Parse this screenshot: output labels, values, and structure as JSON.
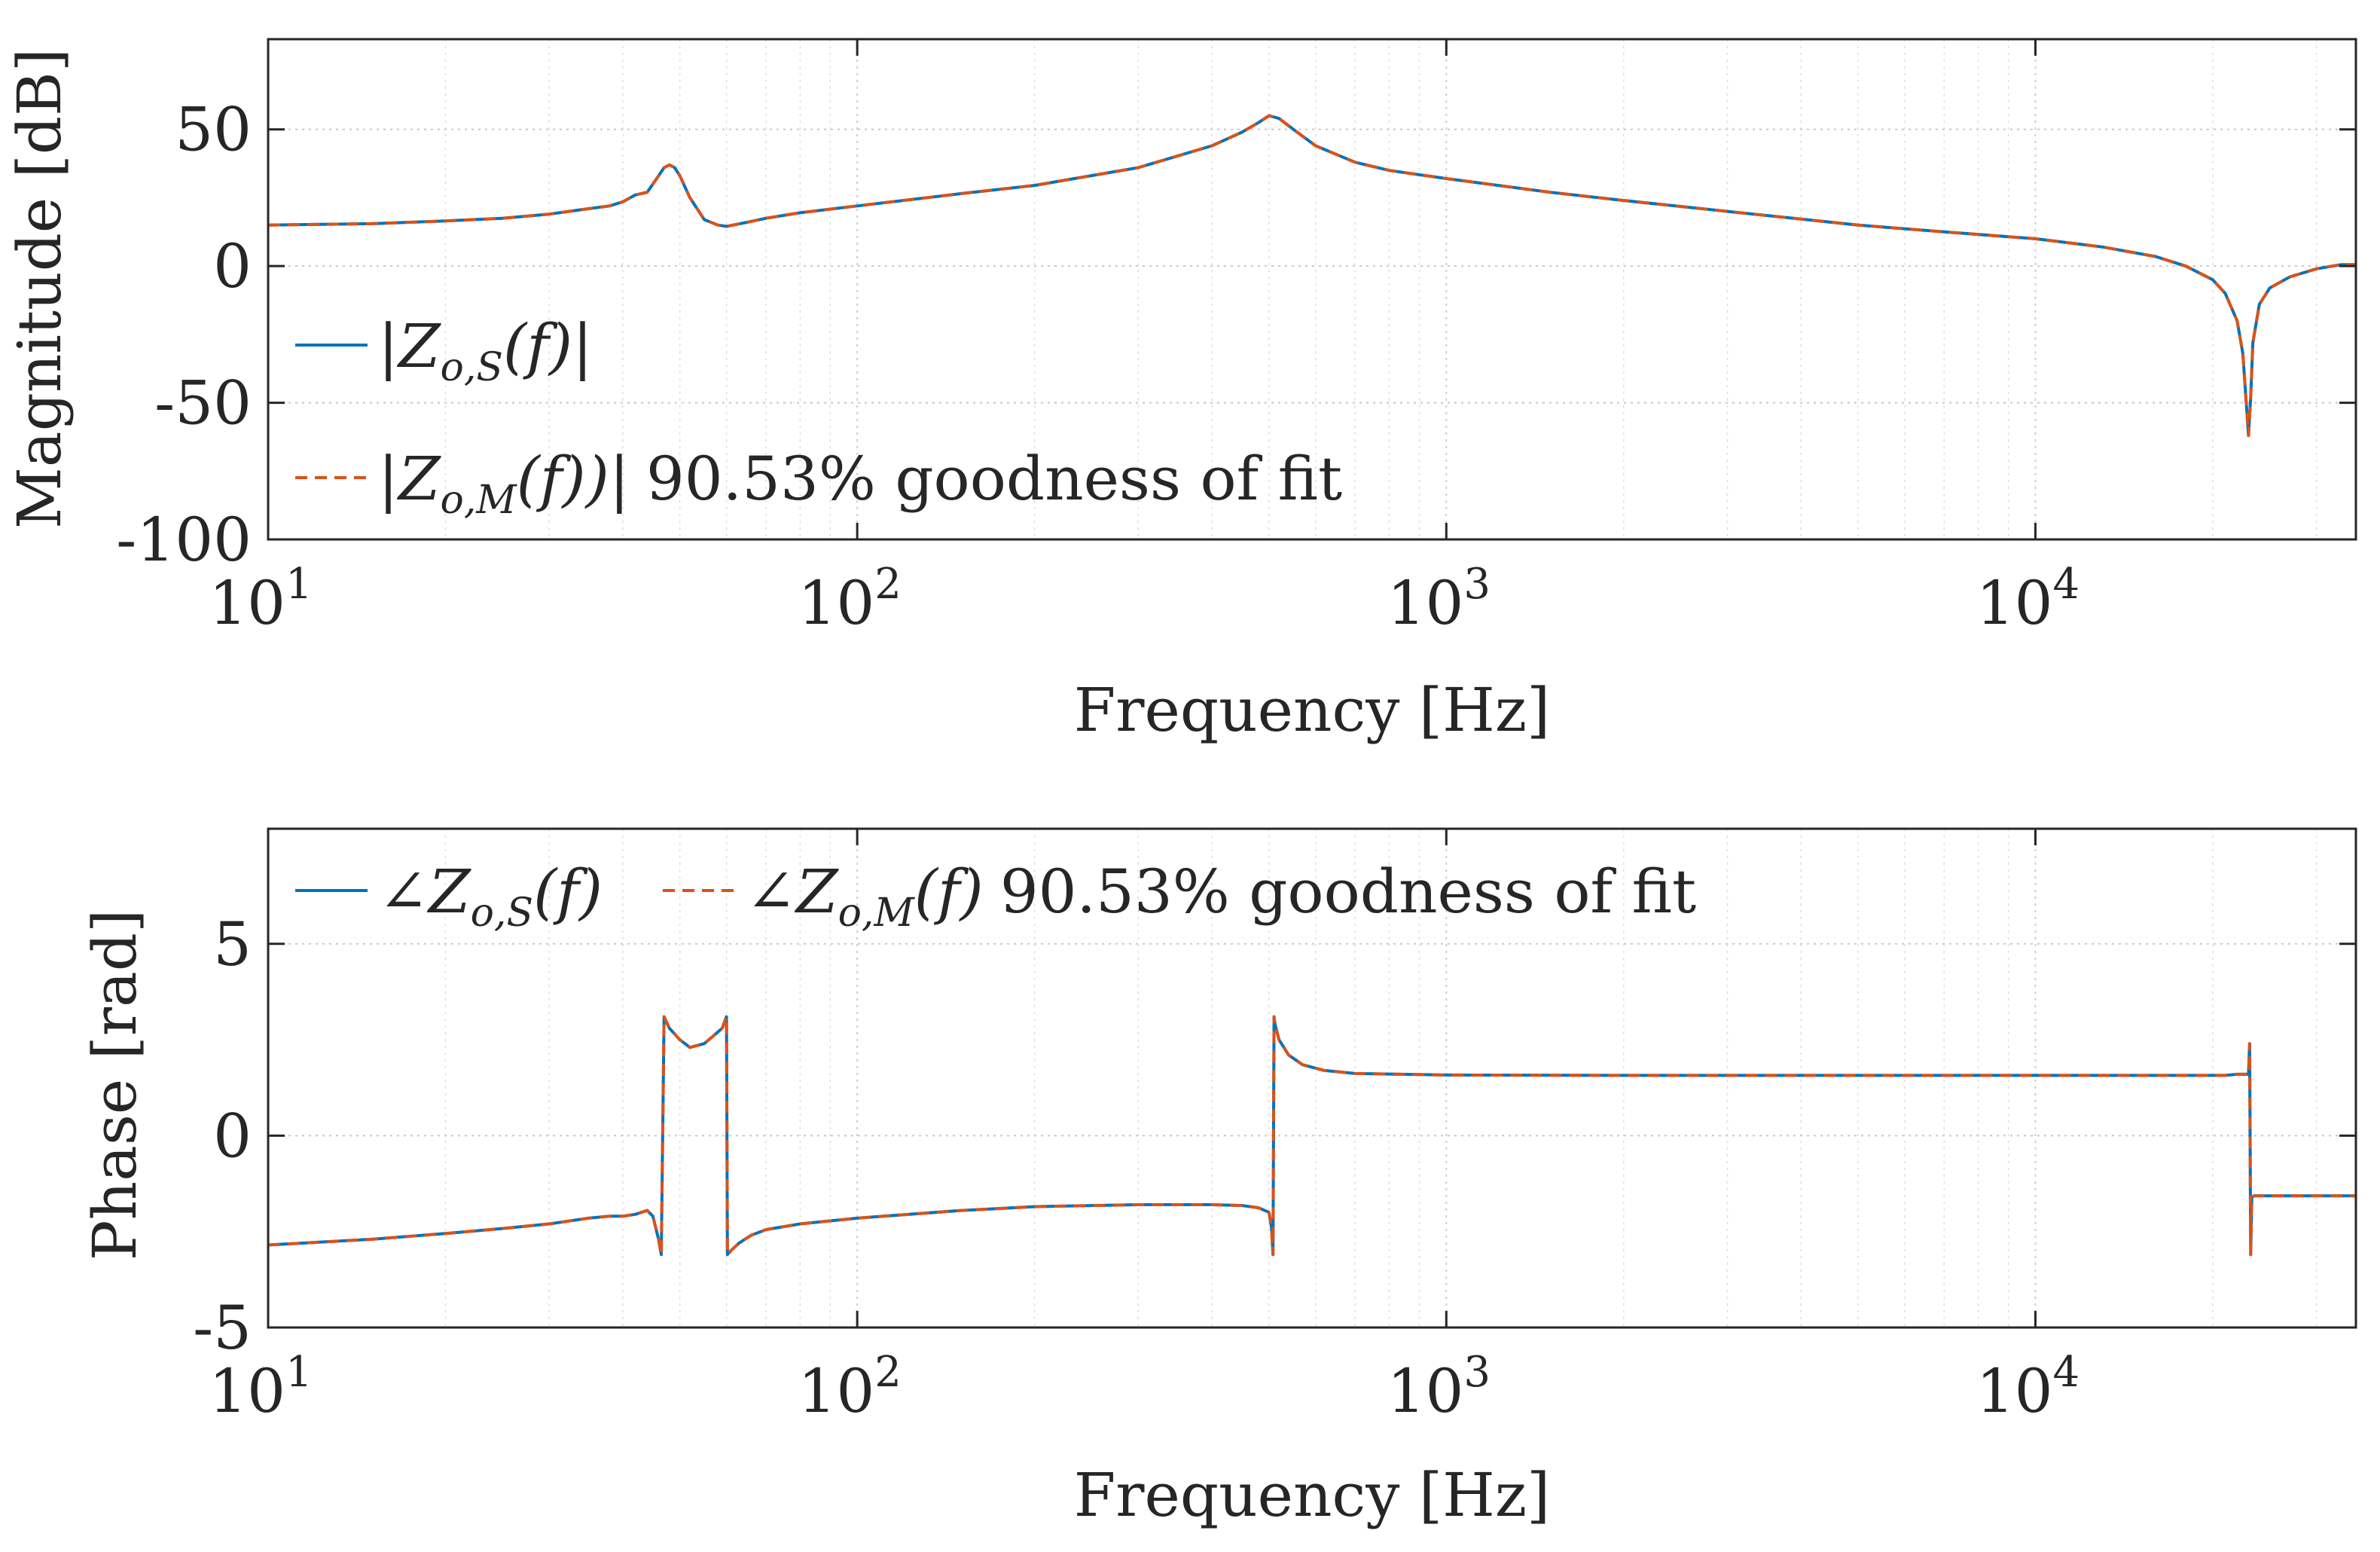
{
  "colors": {
    "series_s": "#0072BD",
    "series_m": "#D95319",
    "axis": "#262626",
    "grid": "#c8c8c8"
  },
  "chart_data": [
    {
      "type": "line",
      "name": "magnitude",
      "xscale": "log",
      "xlim": [
        10,
        35000
      ],
      "ylim": [
        -100,
        83
      ],
      "xlabel": "Frequency [Hz]",
      "ylabel": "Magnitude [dB]",
      "grid": true,
      "xticks": [
        {
          "value": 10,
          "base": "10",
          "exp": "1"
        },
        {
          "value": 100,
          "base": "10",
          "exp": "2"
        },
        {
          "value": 1000,
          "base": "10",
          "exp": "3"
        },
        {
          "value": 10000,
          "base": "10",
          "exp": "4"
        }
      ],
      "yticks": [
        {
          "value": 50,
          "label": "50"
        },
        {
          "value": 0,
          "label": "0"
        },
        {
          "value": -50,
          "label": "-50"
        },
        {
          "value": -100,
          "label": "-100"
        }
      ],
      "legend": {
        "position": "left",
        "entries": [
          "|Zo,S(f)|",
          "|Zo,M(f))| 90.53% goodness of fit"
        ],
        "s_open": "|Z",
        "s_sub": "o,S",
        "s_close": "(f)|",
        "m_open": "|Z",
        "m_sub": "o,M",
        "m_close": "(f))|",
        "m_suffix": "90.53% goodness of fit"
      },
      "series": [
        {
          "name": "|Zo,S(f)|",
          "style": "solid",
          "x": [
            10,
            15,
            20,
            25,
            30,
            35,
            38,
            40,
            42,
            44,
            46,
            47,
            48,
            49,
            50,
            52,
            55,
            58,
            60,
            65,
            70,
            80,
            100,
            150,
            200,
            300,
            400,
            450,
            480,
            500,
            520,
            550,
            600,
            700,
            800,
            1000,
            1500,
            2000,
            3000,
            5000,
            7000,
            10000,
            13000,
            16000,
            18000,
            20000,
            21000,
            22000,
            22500,
            23000,
            23200,
            23400,
            24000,
            25000,
            27000,
            30000,
            33000,
            35000
          ],
          "y": [
            15,
            15.5,
            16.5,
            17.5,
            19,
            21,
            22,
            23.5,
            26,
            27,
            33,
            36,
            37,
            36,
            33,
            25,
            17,
            15,
            14.5,
            16,
            17.5,
            19.5,
            22,
            26.5,
            29.5,
            36,
            44,
            49,
            52.5,
            55,
            54,
            50,
            44,
            38,
            35,
            32,
            27,
            24,
            20,
            15,
            12.5,
            10,
            7,
            3.5,
            0,
            -5,
            -10,
            -20,
            -32,
            -62,
            -48,
            -28,
            -14,
            -8,
            -4,
            -1,
            0.5,
            0.5
          ]
        },
        {
          "name": "|Zo,M(f))| 90.53% goodness of fit",
          "style": "dashed",
          "x": [
            10,
            15,
            20,
            25,
            30,
            35,
            38,
            40,
            42,
            44,
            46,
            47,
            48,
            49,
            50,
            52,
            55,
            58,
            60,
            65,
            70,
            80,
            100,
            150,
            200,
            300,
            400,
            450,
            480,
            500,
            520,
            550,
            600,
            700,
            800,
            1000,
            1500,
            2000,
            3000,
            5000,
            7000,
            10000,
            13000,
            16000,
            18000,
            20000,
            21000,
            22000,
            22500,
            23000,
            23200,
            23400,
            24000,
            25000,
            27000,
            30000,
            33000,
            35000
          ],
          "y": [
            15,
            15.5,
            16.5,
            17.5,
            19,
            21,
            22,
            23.5,
            26,
            27,
            33,
            36,
            37,
            36,
            33,
            25,
            17,
            15,
            14.5,
            16,
            17.5,
            19.5,
            22,
            26.5,
            29.5,
            36,
            44,
            49,
            52.5,
            55,
            54,
            50,
            44,
            38,
            35,
            32,
            27,
            24,
            20,
            15,
            12.5,
            10,
            7,
            3.5,
            0,
            -5,
            -10,
            -20,
            -32,
            -62,
            -48,
            -28,
            -14,
            -8,
            -4,
            -1,
            0.5,
            0.5
          ]
        }
      ]
    },
    {
      "type": "line",
      "name": "phase",
      "xscale": "log",
      "xlim": [
        10,
        35000
      ],
      "ylim": [
        -5,
        8
      ],
      "xlabel": "Frequency [Hz]",
      "ylabel": "Phase [rad]",
      "grid": true,
      "xticks": [
        {
          "value": 10,
          "base": "10",
          "exp": "1"
        },
        {
          "value": 100,
          "base": "10",
          "exp": "2"
        },
        {
          "value": 1000,
          "base": "10",
          "exp": "3"
        },
        {
          "value": 10000,
          "base": "10",
          "exp": "4"
        }
      ],
      "yticks": [
        {
          "value": 5,
          "label": "5"
        },
        {
          "value": 0,
          "label": "0"
        },
        {
          "value": -5,
          "label": "-5"
        }
      ],
      "legend": {
        "position": "top",
        "entries": [
          "∠Zo,S(f)",
          "∠Zo,M(f) 90.53% goodness of fit"
        ],
        "s_open": "∠Z",
        "s_sub": "o,S",
        "s_close": "(f)",
        "m_open": "∠Z",
        "m_sub": "o,M",
        "m_close": "(f)",
        "m_suffix": "90.53% goodness of fit"
      },
      "series": [
        {
          "name": "∠Zo,S(f)",
          "style": "solid",
          "x": [
            10,
            15,
            20,
            25,
            30,
            35,
            38,
            40,
            42,
            44,
            45,
            46,
            46.5,
            47,
            48,
            50,
            52,
            55,
            57,
            59,
            60,
            60.2,
            61,
            63,
            66,
            70,
            80,
            100,
            150,
            200,
            300,
            400,
            450,
            480,
            500,
            505,
            508,
            510,
            512,
            520,
            540,
            570,
            620,
            700,
            1000,
            2000,
            5000,
            10000,
            15000,
            20000,
            21000,
            22000,
            22800,
            23000,
            23100,
            23200,
            23300,
            23500,
            25000,
            30000,
            35000
          ],
          "y": [
            -2.85,
            -2.7,
            -2.55,
            -2.42,
            -2.3,
            -2.15,
            -2.1,
            -2.1,
            -2.05,
            -1.95,
            -2.1,
            -2.7,
            -3.1,
            3.1,
            2.8,
            2.5,
            2.3,
            2.4,
            2.6,
            2.8,
            3.1,
            -3.1,
            -3.0,
            -2.8,
            -2.6,
            -2.45,
            -2.3,
            -2.15,
            -1.95,
            -1.85,
            -1.8,
            -1.8,
            -1.82,
            -1.88,
            -2.0,
            -2.4,
            -3.1,
            3.1,
            2.9,
            2.5,
            2.1,
            1.85,
            1.7,
            1.62,
            1.58,
            1.57,
            1.57,
            1.57,
            1.57,
            1.57,
            1.57,
            1.6,
            1.6,
            1.6,
            2.4,
            -3.1,
            -1.6,
            -1.57,
            -1.57,
            -1.57,
            -1.57
          ]
        },
        {
          "name": "∠Zo,M(f) 90.53% goodness of fit",
          "style": "dashed",
          "x": [
            10,
            15,
            20,
            25,
            30,
            35,
            38,
            40,
            42,
            44,
            45,
            46,
            46.5,
            47,
            48,
            50,
            52,
            55,
            57,
            59,
            60,
            60.2,
            61,
            63,
            66,
            70,
            80,
            100,
            150,
            200,
            300,
            400,
            450,
            480,
            500,
            505,
            508,
            510,
            512,
            520,
            540,
            570,
            620,
            700,
            1000,
            2000,
            5000,
            10000,
            15000,
            20000,
            21000,
            22000,
            22800,
            23000,
            23100,
            23200,
            23300,
            23500,
            25000,
            30000,
            35000
          ],
          "y": [
            -2.85,
            -2.7,
            -2.55,
            -2.42,
            -2.3,
            -2.15,
            -2.1,
            -2.1,
            -2.05,
            -1.95,
            -2.1,
            -2.7,
            -3.1,
            3.1,
            2.8,
            2.5,
            2.3,
            2.4,
            2.6,
            2.8,
            3.1,
            -3.1,
            -3.0,
            -2.8,
            -2.6,
            -2.45,
            -2.3,
            -2.15,
            -1.95,
            -1.85,
            -1.8,
            -1.8,
            -1.82,
            -1.88,
            -2.0,
            -2.4,
            -3.1,
            3.1,
            2.9,
            2.5,
            2.1,
            1.85,
            1.7,
            1.62,
            1.58,
            1.57,
            1.57,
            1.57,
            1.57,
            1.57,
            1.57,
            1.6,
            1.6,
            1.6,
            2.4,
            -3.1,
            -1.6,
            -1.57,
            -1.57,
            -1.57,
            -1.57
          ]
        }
      ]
    }
  ]
}
